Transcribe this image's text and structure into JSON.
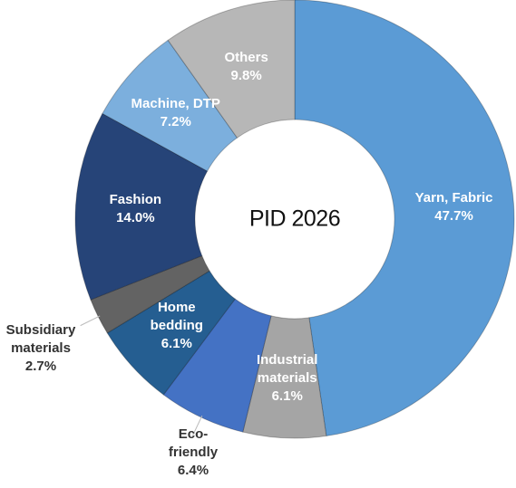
{
  "chart_data": {
    "type": "donut",
    "title": "PID 2026",
    "categories": [
      "Yarn, Fabric",
      "Industrial materials",
      "Eco-friendly",
      "Home bedding",
      "Subsidiary materials",
      "Fashion",
      "Machine, DTP",
      "Others"
    ],
    "values": [
      47.7,
      6.1,
      6.4,
      6.1,
      2.7,
      14.0,
      7.2,
      9.8
    ],
    "value_labels": [
      "47.7%",
      "6.1%",
      "6.4%",
      "6.1%",
      "2.7%",
      "14.0%",
      "7.2%",
      "9.8%"
    ],
    "colors": [
      "#5b9bd5",
      "#a5a5a5",
      "#4472c4",
      "#255e91",
      "#636363",
      "#264478",
      "#7cafdd",
      "#b7b7b7"
    ]
  }
}
